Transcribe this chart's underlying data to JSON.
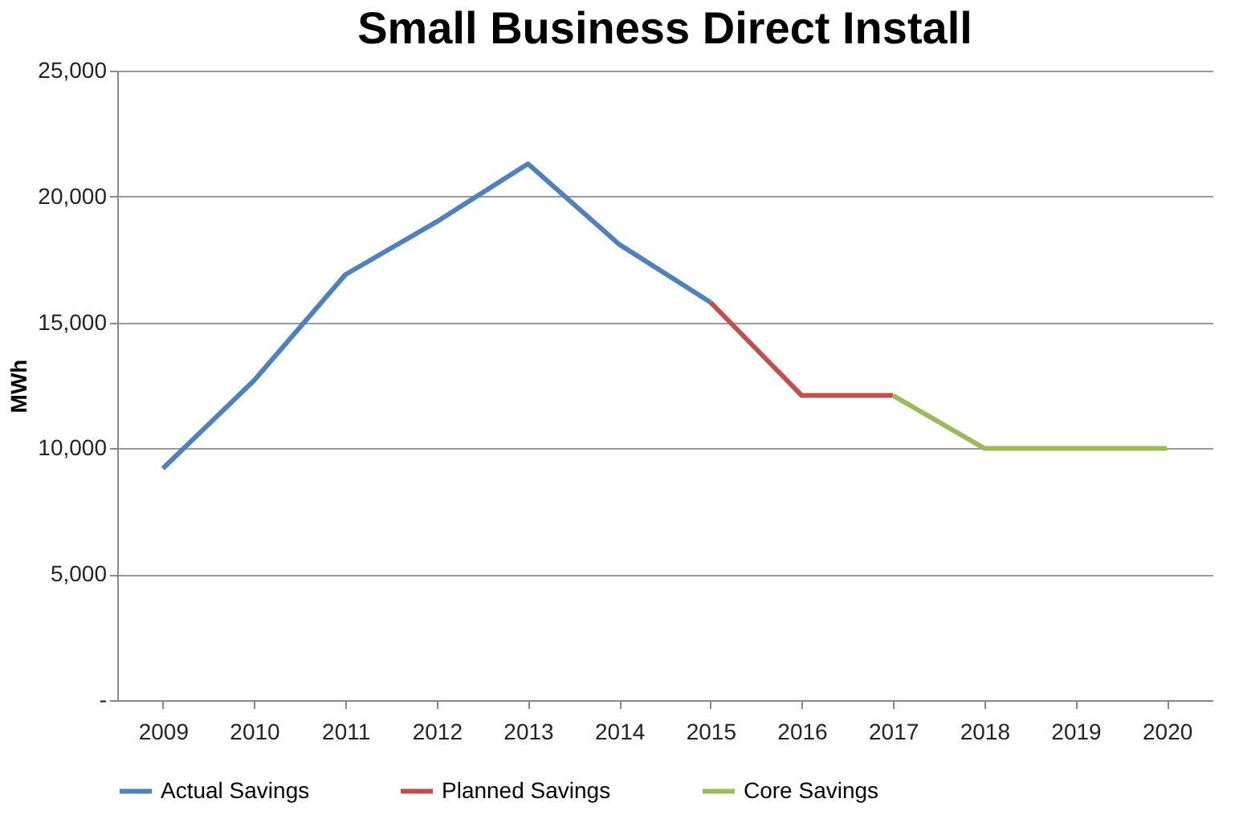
{
  "chart_data": {
    "type": "line",
    "title": "Small Business Direct Install",
    "ylabel": "MWh",
    "categories": [
      "2009",
      "2010",
      "2011",
      "2012",
      "2013",
      "2014",
      "2015",
      "2016",
      "2017",
      "2018",
      "2019",
      "2020"
    ],
    "series": [
      {
        "name": "Actual Savings",
        "color": "#4f81bd",
        "values": [
          9200,
          12700,
          16900,
          19000,
          21300,
          18100,
          15800,
          null,
          null,
          null,
          null,
          null
        ]
      },
      {
        "name": "Planned Savings",
        "color": "#c0504d",
        "values": [
          null,
          null,
          null,
          null,
          null,
          null,
          15800,
          12100,
          12100,
          null,
          null,
          null
        ]
      },
      {
        "name": "Core Savings",
        "color": "#9bbb59",
        "values": [
          null,
          null,
          null,
          null,
          null,
          null,
          null,
          null,
          12100,
          10000,
          10000,
          10000
        ]
      }
    ],
    "ylim": [
      0,
      25000
    ],
    "yticks": [
      {
        "value": 0,
        "label": "-"
      },
      {
        "value": 5000,
        "label": "5,000"
      },
      {
        "value": 10000,
        "label": "10,000"
      },
      {
        "value": 15000,
        "label": "15,000"
      },
      {
        "value": 20000,
        "label": "20,000"
      },
      {
        "value": 25000,
        "label": "25,000"
      }
    ],
    "grid": "y",
    "legend": "bottom",
    "marker": "none",
    "line_style": "solid"
  }
}
